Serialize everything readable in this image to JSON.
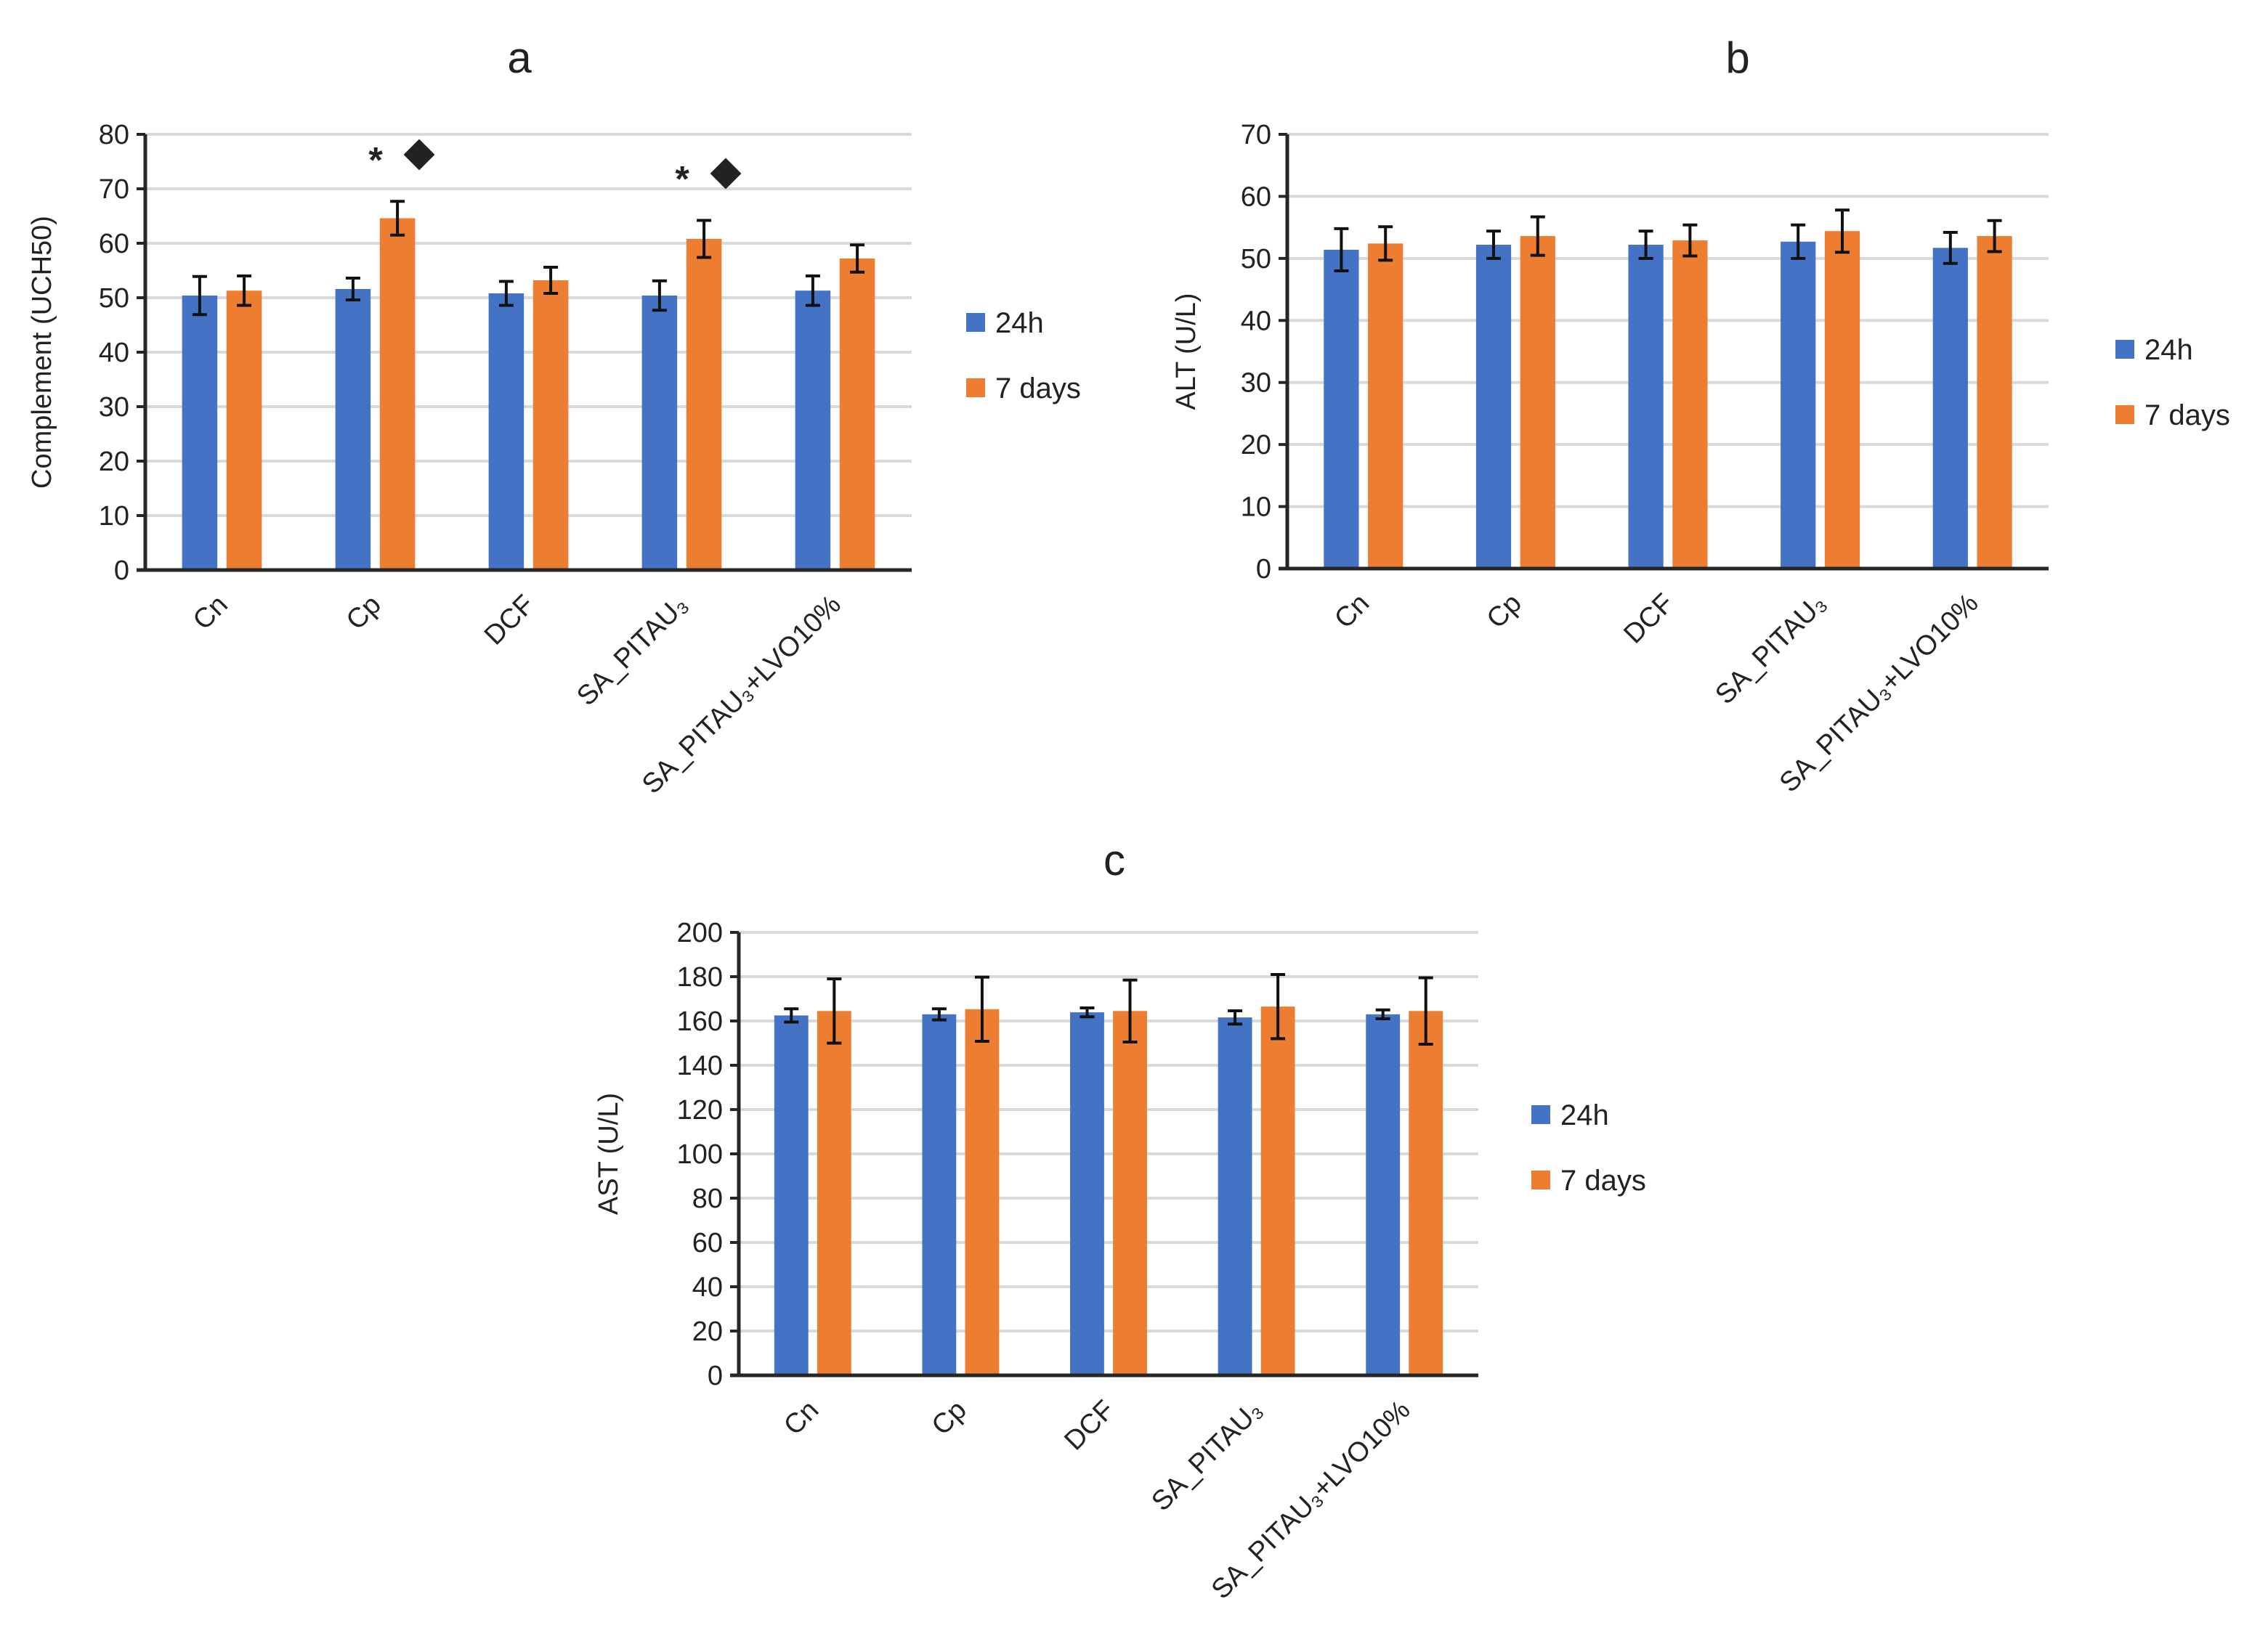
{
  "colors": {
    "series_24h": "#4472C4",
    "series_7days": "#ED7D31",
    "grid": "#D9D9D9",
    "axis": "#262626"
  },
  "chart_data": [
    {
      "type": "bar",
      "title": "a",
      "xlabel": "",
      "ylabel": "Complement (UCH50)",
      "ylim": [
        0,
        80
      ],
      "yticks": [
        0,
        10,
        20,
        30,
        40,
        50,
        60,
        70,
        80
      ],
      "grid": true,
      "legend_position": "right",
      "categories": [
        "Cn",
        "Cp",
        "DCF",
        "SA_PITAU₃",
        "SA_PITAU₃+LVO10%"
      ],
      "series": [
        {
          "name": "24h",
          "values": [
            50.4,
            51.6,
            50.8,
            50.4,
            51.3
          ],
          "errors": [
            3.5,
            2.0,
            2.2,
            2.7,
            2.7
          ]
        },
        {
          "name": "7 days",
          "values": [
            51.3,
            64.6,
            53.2,
            60.8,
            57.2
          ],
          "errors": [
            2.7,
            3.1,
            2.4,
            3.4,
            2.5
          ]
        }
      ],
      "annotations": [
        {
          "category": "Cp",
          "text": "*",
          "symbol": "◆"
        },
        {
          "category": "SA_PITAU₃",
          "text": "*",
          "symbol": "◆"
        }
      ]
    },
    {
      "type": "bar",
      "title": "b",
      "xlabel": "",
      "ylabel": "ALT (U/L)",
      "ylim": [
        0,
        70
      ],
      "yticks": [
        0,
        10,
        20,
        30,
        40,
        50,
        60,
        70
      ],
      "grid": true,
      "legend_position": "right",
      "categories": [
        "Cn",
        "Cp",
        "DCF",
        "SA_PITAU₃",
        "SA_PITAU₃+LVO10%"
      ],
      "series": [
        {
          "name": "24h",
          "values": [
            51.4,
            52.2,
            52.2,
            52.7,
            51.7
          ],
          "errors": [
            3.4,
            2.2,
            2.2,
            2.7,
            2.5
          ]
        },
        {
          "name": "7 days",
          "values": [
            52.4,
            53.6,
            52.9,
            54.4,
            53.6
          ],
          "errors": [
            2.7,
            3.1,
            2.5,
            3.4,
            2.5
          ]
        }
      ],
      "annotations": []
    },
    {
      "type": "bar",
      "title": "c",
      "xlabel": "",
      "ylabel": "AST (U/L)",
      "ylim": [
        0,
        200
      ],
      "yticks": [
        0,
        20,
        40,
        60,
        80,
        100,
        120,
        140,
        160,
        180,
        200
      ],
      "grid": true,
      "legend_position": "right",
      "categories": [
        "Cn",
        "Cp",
        "DCF",
        "SA_PITAU₃",
        "SA_PITAU₃+LVO10%"
      ],
      "series": [
        {
          "name": "24h",
          "values": [
            162.5,
            163,
            163.9,
            161.6,
            163
          ],
          "errors": [
            3,
            2.5,
            2,
            3,
            2
          ]
        },
        {
          "name": "7 days",
          "values": [
            164.5,
            165.3,
            164.5,
            166.5,
            164.5
          ],
          "errors": [
            14.5,
            14.5,
            14,
            14.5,
            15
          ]
        }
      ],
      "annotations": []
    }
  ]
}
